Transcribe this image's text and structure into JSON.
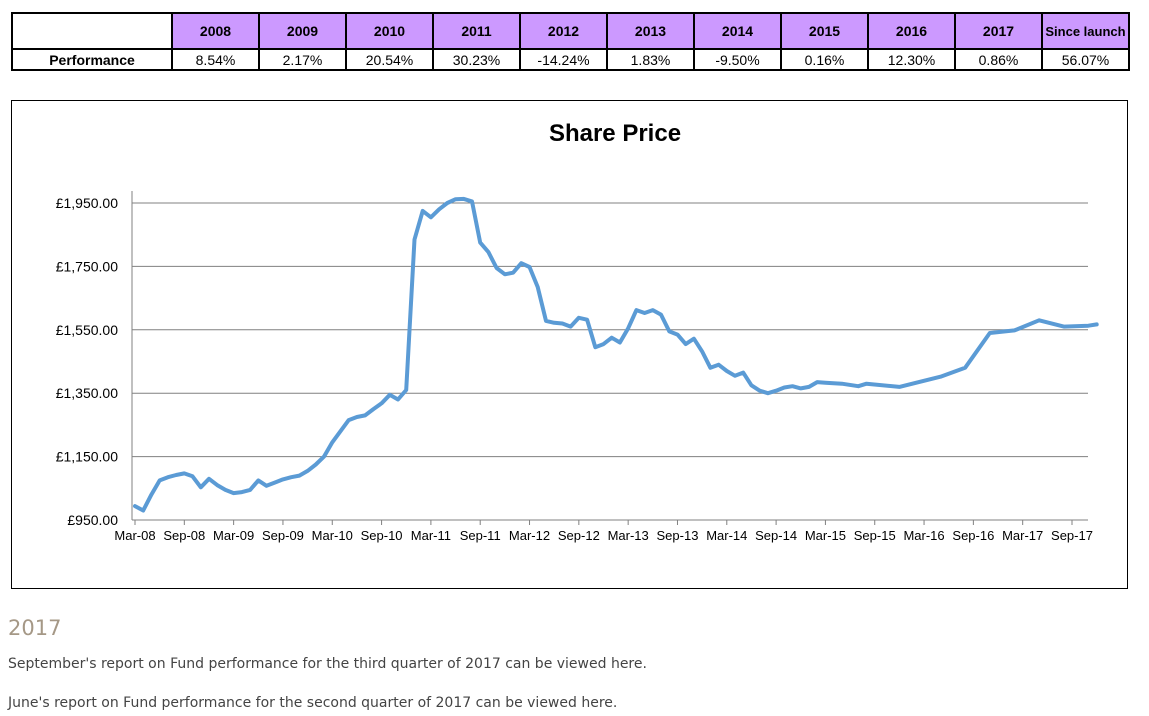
{
  "performance_table": {
    "years": [
      "2008",
      "2009",
      "2010",
      "2011",
      "2012",
      "2013",
      "2014",
      "2015",
      "2016",
      "2017",
      "Since launch"
    ],
    "row_label": "Performance",
    "values": [
      "8.54%",
      "2.17%",
      "20.54%",
      "30.23%",
      "-14.24%",
      "1.83%",
      "-9.50%",
      "0.16%",
      "12.30%",
      "0.86%",
      "56.07%"
    ]
  },
  "chart_data": {
    "type": "line",
    "title": "Share Price",
    "xlabel": "",
    "ylabel": "",
    "ylim": [
      950,
      2000
    ],
    "xlim": [
      "2008-03",
      "2017-09"
    ],
    "grid": true,
    "y_ticks": [
      "£950.00",
      "£1,150.00",
      "£1,350.00",
      "£1,550.00",
      "£1,750.00",
      "£1,950.00"
    ],
    "x_ticks": [
      "Mar-08",
      "Sep-08",
      "Mar-09",
      "Sep-09",
      "Mar-10",
      "Sep-10",
      "Mar-11",
      "Sep-11",
      "Mar-12",
      "Sep-12",
      "Mar-13",
      "Sep-13",
      "Mar-14",
      "Sep-14",
      "Mar-15",
      "Sep-15",
      "Mar-16",
      "Sep-16",
      "Mar-17",
      "Sep-17"
    ],
    "series": [
      {
        "color": "#5b9bd5",
        "points": [
          [
            "2008-03",
            994
          ],
          [
            "2008-04",
            980
          ],
          [
            "2008-05",
            1030
          ],
          [
            "2008-06",
            1075
          ],
          [
            "2008-07",
            1085
          ],
          [
            "2008-08",
            1092
          ],
          [
            "2008-09",
            1097
          ],
          [
            "2008-10",
            1088
          ],
          [
            "2008-11",
            1053
          ],
          [
            "2008-12",
            1080
          ],
          [
            "2009-01",
            1060
          ],
          [
            "2009-02",
            1045
          ],
          [
            "2009-03",
            1035
          ],
          [
            "2009-04",
            1038
          ],
          [
            "2009-05",
            1045
          ],
          [
            "2009-06",
            1075
          ],
          [
            "2009-07",
            1058
          ],
          [
            "2009-08",
            1068
          ],
          [
            "2009-09",
            1078
          ],
          [
            "2009-10",
            1085
          ],
          [
            "2009-11",
            1090
          ],
          [
            "2009-12",
            1105
          ],
          [
            "2010-01",
            1125
          ],
          [
            "2010-02",
            1150
          ],
          [
            "2010-03",
            1195
          ],
          [
            "2010-04",
            1230
          ],
          [
            "2010-05",
            1265
          ],
          [
            "2010-06",
            1275
          ],
          [
            "2010-07",
            1280
          ],
          [
            "2010-08",
            1300
          ],
          [
            "2010-09",
            1318
          ],
          [
            "2010-10",
            1345
          ],
          [
            "2010-11",
            1330
          ],
          [
            "2010-12",
            1360
          ],
          [
            "2011-01",
            1835
          ],
          [
            "2011-02",
            1925
          ],
          [
            "2011-03",
            1905
          ],
          [
            "2011-04",
            1930
          ],
          [
            "2011-05",
            1950
          ],
          [
            "2011-06",
            1962
          ],
          [
            "2011-07",
            1963
          ],
          [
            "2011-08",
            1955
          ],
          [
            "2011-09",
            1825
          ],
          [
            "2011-10",
            1795
          ],
          [
            "2011-11",
            1745
          ],
          [
            "2011-12",
            1725
          ],
          [
            "2012-01",
            1730
          ],
          [
            "2012-02",
            1760
          ],
          [
            "2012-03",
            1748
          ],
          [
            "2012-04",
            1685
          ],
          [
            "2012-05",
            1578
          ],
          [
            "2012-06",
            1572
          ],
          [
            "2012-07",
            1570
          ],
          [
            "2012-08",
            1560
          ],
          [
            "2012-09",
            1588
          ],
          [
            "2012-10",
            1582
          ],
          [
            "2012-11",
            1495
          ],
          [
            "2012-12",
            1505
          ],
          [
            "2013-01",
            1525
          ],
          [
            "2013-02",
            1510
          ],
          [
            "2013-03",
            1555
          ],
          [
            "2013-04",
            1612
          ],
          [
            "2013-05",
            1603
          ],
          [
            "2013-06",
            1612
          ],
          [
            "2013-07",
            1598
          ],
          [
            "2013-08",
            1545
          ],
          [
            "2013-09",
            1535
          ],
          [
            "2013-10",
            1505
          ],
          [
            "2013-11",
            1522
          ],
          [
            "2013-12",
            1482
          ],
          [
            "2014-01",
            1430
          ],
          [
            "2014-02",
            1440
          ],
          [
            "2014-03",
            1420
          ],
          [
            "2014-04",
            1405
          ],
          [
            "2014-05",
            1415
          ],
          [
            "2014-06",
            1375
          ],
          [
            "2014-07",
            1358
          ],
          [
            "2014-08",
            1350
          ],
          [
            "2014-09",
            1358
          ],
          [
            "2014-10",
            1368
          ],
          [
            "2014-11",
            1372
          ],
          [
            "2014-12",
            1365
          ],
          [
            "2015-01",
            1370
          ],
          [
            "2015-02",
            1385
          ],
          [
            "2015-03",
            1383
          ],
          [
            "2015-05",
            1380
          ],
          [
            "2015-07",
            1372
          ],
          [
            "2015-08",
            1380
          ],
          [
            "2015-12",
            1370
          ],
          [
            "2016-05",
            1402
          ],
          [
            "2016-08",
            1430
          ],
          [
            "2016-11",
            1540
          ],
          [
            "2017-02",
            1548
          ],
          [
            "2017-05",
            1580
          ],
          [
            "2017-08",
            1560
          ],
          [
            "2017-11",
            1563
          ],
          [
            "2017-12",
            1567
          ]
        ]
      }
    ]
  },
  "section": {
    "heading": "2017",
    "report_q3": "September's report on Fund performance for the third quarter of 2017 can be viewed here.",
    "report_q2": "June's report on Fund performance for the second quarter of 2017 can be viewed here."
  }
}
